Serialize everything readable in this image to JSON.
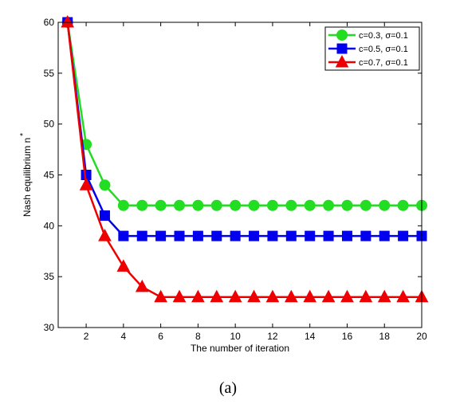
{
  "caption": "(a)",
  "chart_data": {
    "type": "line",
    "title": "",
    "xlabel": "The number of iteration",
    "ylabel": "Nash equilibrium n",
    "ylabel_superscript": "*",
    "xlim": [
      0.5,
      20
    ],
    "ylim": [
      30,
      60
    ],
    "xticks": [
      2,
      4,
      6,
      8,
      10,
      12,
      14,
      16,
      18,
      20
    ],
    "yticks": [
      30,
      35,
      40,
      45,
      50,
      55,
      60
    ],
    "grid": false,
    "legend_position": "top-right",
    "x": [
      1,
      2,
      3,
      4,
      5,
      6,
      7,
      8,
      9,
      10,
      11,
      12,
      13,
      14,
      15,
      16,
      17,
      18,
      19,
      20
    ],
    "series": [
      {
        "name": "c=0.3, σ=0.1",
        "color": "#22dd22",
        "marker": "circle",
        "values": [
          60,
          48,
          44,
          42,
          42,
          42,
          42,
          42,
          42,
          42,
          42,
          42,
          42,
          42,
          42,
          42,
          42,
          42,
          42,
          42
        ]
      },
      {
        "name": "c=0.5, σ=0.1",
        "color": "#0000ee",
        "marker": "square",
        "values": [
          60,
          45,
          41,
          39,
          39,
          39,
          39,
          39,
          39,
          39,
          39,
          39,
          39,
          39,
          39,
          39,
          39,
          39,
          39,
          39
        ]
      },
      {
        "name": "c=0.7, σ=0.1",
        "color": "#ee0000",
        "marker": "triangle",
        "values": [
          60,
          44,
          39,
          36,
          34,
          33,
          33,
          33,
          33,
          33,
          33,
          33,
          33,
          33,
          33,
          33,
          33,
          33,
          33,
          33
        ]
      }
    ]
  }
}
